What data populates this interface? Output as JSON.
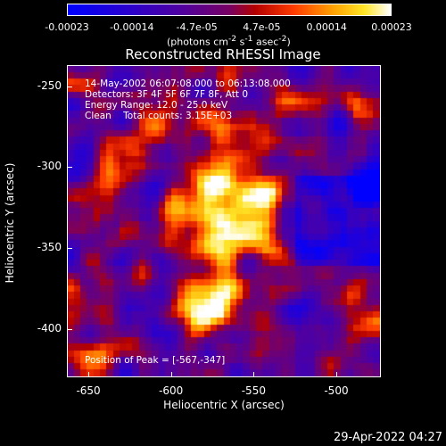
{
  "colorbar": {
    "ticks": [
      "-0.00023",
      "-0.00014",
      "-4.7e-05",
      "4.7e-05",
      "0.00014",
      "0.00023"
    ],
    "units_html": "(photons cm<sup>-2</sup> s<sup>-1</sup> asec<sup>-2</sup>)",
    "units_text": "(photons cm-2 s-1 asec-2)"
  },
  "title": "Reconstructed RHESSI Image",
  "annotations": {
    "line1": "14-May-2002 06:07:08.000 to 06:13:08.000",
    "line2": "Detectors: 3F 4F 5F 6F 7F 8F, Att 0",
    "line3": "Energy Range: 12.0 - 25.0 keV",
    "line4": "Clean    Total counts: 3.15E+03",
    "peak": "Position of Peak = [-567,-347]"
  },
  "x_axis": {
    "label": "Heliocentric X (arcsec)",
    "ticks": [
      "-650",
      "-600",
      "-550",
      "-500"
    ],
    "tick_values": [
      -650,
      -600,
      -550,
      -500
    ],
    "range": [
      -663,
      -473
    ]
  },
  "y_axis": {
    "label": "Heliocentric Y (arcsec)",
    "ticks": [
      "-250",
      "-300",
      "-350",
      "-400"
    ],
    "tick_values": [
      -250,
      -300,
      -350,
      -400
    ],
    "range": [
      -430,
      -237
    ]
  },
  "footer_date": "29-Apr-2022 04:27",
  "colors": {
    "background": "#000000",
    "text": "#ffffff"
  }
}
